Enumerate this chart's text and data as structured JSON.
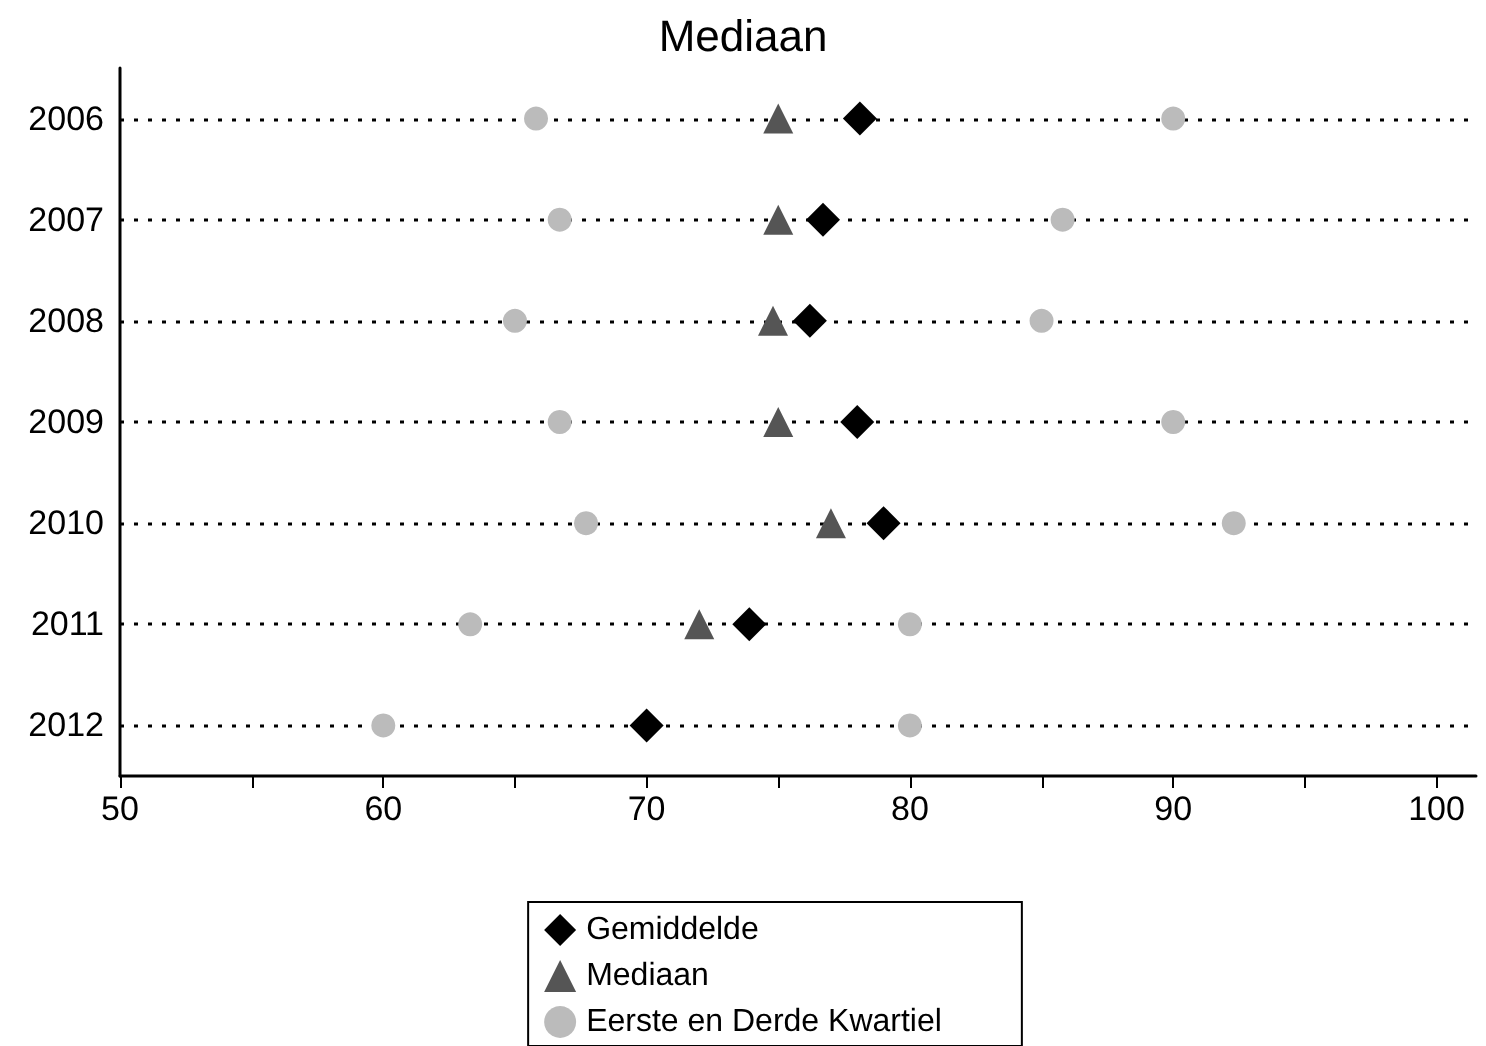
{
  "chart_data": {
    "type": "scatter",
    "title": "Mediaan",
    "orientation": "horizontal",
    "categories": [
      "2006",
      "2007",
      "2008",
      "2009",
      "2010",
      "2011",
      "2012"
    ],
    "series": [
      {
        "name": "Gemiddelde",
        "color": "#000000",
        "marker": "diamond",
        "values": [
          78.1,
          76.7,
          76.2,
          78,
          79,
          73.9,
          70
        ]
      },
      {
        "name": "Mediaan",
        "color": "#555555",
        "marker": "triangle",
        "values": [
          75,
          75,
          74.8,
          75,
          77,
          72,
          null
        ]
      },
      {
        "name": "Eerste en Derde Kwartiel",
        "color": "#bbbbbb",
        "marker": "circle",
        "values": [
          65.8,
          66.7,
          65,
          66.7,
          67.7,
          63.3,
          60
        ]
      },
      {
        "color": "#bbbbbb",
        "marker": "circle",
        "values": [
          90,
          85.8,
          85,
          90,
          92.3,
          80,
          80
        ]
      }
    ],
    "xlim": [
      50,
      101.5
    ],
    "xticks": [
      50,
      {
        "value": 55,
        "label": null
      },
      60,
      {
        "value": 65,
        "label": null
      },
      70,
      {
        "value": 75,
        "label": null
      },
      80,
      {
        "value": 85,
        "label": null
      },
      90,
      {
        "value": 95,
        "label": null
      },
      100
    ],
    "grid": "y",
    "legend": "bottom"
  }
}
